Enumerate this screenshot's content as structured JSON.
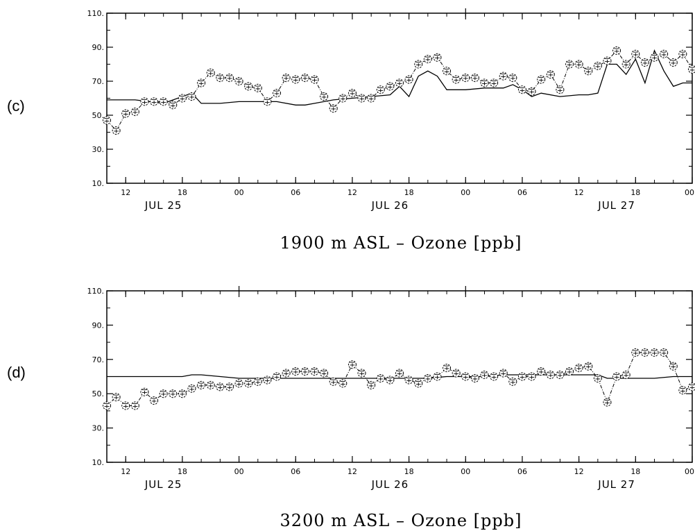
{
  "chart_data": [
    {
      "panel_label": "(c)",
      "type": "line",
      "title": "1900 m ASL – Ozone [ppb]",
      "x_unit": "hours since JUL 25 00",
      "xlim": [
        10,
        72
      ],
      "ylim": [
        10,
        110
      ],
      "yticks": [
        10,
        30,
        50,
        70,
        90,
        110
      ],
      "ytick_labels": [
        "10.",
        "30.",
        "50.",
        "70.",
        "90.",
        "110."
      ],
      "xticks": [
        12,
        18,
        24,
        30,
        36,
        42,
        48,
        54,
        60,
        66,
        72
      ],
      "xtick_labels": [
        "12",
        "18",
        "00",
        "06",
        "12",
        "18",
        "00",
        "06",
        "12",
        "18",
        "00"
      ],
      "date_labels": [
        {
          "x": 16,
          "text": "JUL 25"
        },
        {
          "x": 40,
          "text": "JUL 26"
        },
        {
          "x": 64,
          "text": "JUL 27"
        }
      ],
      "grid": false,
      "series": [
        {
          "style": "solid",
          "x": [
            10,
            13,
            16,
            18,
            19,
            20,
            22,
            24,
            26,
            28,
            30,
            31,
            32,
            34,
            36,
            38,
            40,
            41,
            42,
            43,
            44,
            45,
            46,
            47,
            48,
            50,
            52,
            53,
            54,
            55,
            56,
            58,
            60,
            61,
            62,
            63,
            64,
            65,
            66,
            67,
            68,
            69,
            70,
            71,
            72
          ],
          "y": [
            59,
            59,
            57,
            61,
            63,
            57,
            57,
            58,
            58,
            58,
            56,
            56,
            57,
            59,
            60,
            61,
            62,
            67,
            61,
            73,
            76,
            73,
            65,
            65,
            65,
            66,
            66,
            68,
            65,
            61,
            63,
            61,
            62,
            62,
            63,
            80,
            80,
            74,
            83,
            69,
            88,
            76,
            67,
            69,
            69
          ]
        },
        {
          "style": "dashdot-markers",
          "x": [
            10,
            11,
            12,
            13,
            14,
            15,
            16,
            17,
            18,
            19,
            20,
            21,
            22,
            23,
            24,
            25,
            26,
            27,
            28,
            29,
            30,
            31,
            32,
            33,
            34,
            35,
            36,
            37,
            38,
            39,
            40,
            41,
            42,
            43,
            44,
            45,
            46,
            47,
            48,
            49,
            50,
            51,
            52,
            53,
            54,
            55,
            56,
            57,
            58,
            59,
            60,
            61,
            62,
            63,
            64,
            65,
            66,
            67,
            68,
            69,
            70,
            71,
            72
          ],
          "y": [
            47,
            41,
            51,
            52,
            58,
            58,
            58,
            56,
            60,
            61,
            69,
            75,
            72,
            72,
            70,
            67,
            66,
            58,
            63,
            72,
            71,
            72,
            71,
            61,
            54,
            60,
            63,
            60,
            60,
            65,
            67,
            69,
            71,
            80,
            83,
            84,
            76,
            71,
            72,
            72,
            69,
            69,
            73,
            72,
            65,
            64,
            71,
            74,
            65,
            80,
            80,
            76,
            79,
            82,
            88,
            80,
            86,
            81,
            84,
            86,
            81,
            86,
            77
          ]
        }
      ]
    },
    {
      "panel_label": "(d)",
      "type": "line",
      "title": "3200 m ASL – Ozone [ppb]",
      "x_unit": "hours since JUL 25 00",
      "xlim": [
        10,
        72
      ],
      "ylim": [
        10,
        110
      ],
      "yticks": [
        10,
        30,
        50,
        70,
        90,
        110
      ],
      "ytick_labels": [
        "10.",
        "30.",
        "50.",
        "70.",
        "90.",
        "110."
      ],
      "xticks": [
        12,
        18,
        24,
        30,
        36,
        42,
        48,
        54,
        60,
        66,
        72
      ],
      "xtick_labels": [
        "12",
        "18",
        "00",
        "06",
        "12",
        "18",
        "00",
        "06",
        "12",
        "18",
        "00"
      ],
      "date_labels": [
        {
          "x": 16,
          "text": "JUL 25"
        },
        {
          "x": 40,
          "text": "JUL 26"
        },
        {
          "x": 64,
          "text": "JUL 27"
        }
      ],
      "grid": false,
      "series": [
        {
          "style": "solid",
          "x": [
            10,
            12,
            14,
            16,
            18,
            19,
            20,
            22,
            24,
            26,
            28,
            30,
            32,
            34,
            36,
            38,
            40,
            42,
            44,
            46,
            48,
            50,
            52,
            54,
            56,
            58,
            60,
            61,
            62,
            63,
            64,
            65,
            66,
            68,
            70,
            72
          ],
          "y": [
            60,
            60,
            60,
            60,
            60,
            61,
            61,
            60,
            59,
            59,
            59,
            59,
            59,
            59,
            59,
            59,
            59,
            59,
            59,
            60,
            60,
            60,
            61,
            61,
            61,
            61,
            61,
            61,
            61,
            59,
            59,
            59,
            59,
            59,
            60,
            60
          ]
        },
        {
          "style": "dashdot-markers",
          "x": [
            10,
            11,
            12,
            13,
            14,
            15,
            16,
            17,
            18,
            19,
            20,
            21,
            22,
            23,
            24,
            25,
            26,
            27,
            28,
            29,
            30,
            31,
            32,
            33,
            34,
            35,
            36,
            37,
            38,
            39,
            40,
            41,
            42,
            43,
            44,
            45,
            46,
            47,
            48,
            49,
            50,
            51,
            52,
            53,
            54,
            55,
            56,
            57,
            58,
            59,
            60,
            61,
            62,
            63,
            64,
            65,
            66,
            67,
            68,
            69,
            70,
            71,
            72
          ],
          "y": [
            43,
            48,
            43,
            43,
            51,
            46,
            50,
            50,
            50,
            53,
            55,
            55,
            54,
            54,
            56,
            56,
            57,
            58,
            60,
            62,
            63,
            63,
            63,
            62,
            57,
            56,
            67,
            62,
            55,
            59,
            58,
            62,
            58,
            56,
            59,
            60,
            65,
            62,
            60,
            59,
            61,
            60,
            62,
            57,
            60,
            60,
            63,
            61,
            61,
            63,
            65,
            66,
            59,
            45,
            60,
            61,
            74,
            74,
            74,
            74,
            66,
            52,
            54
          ]
        }
      ]
    }
  ]
}
